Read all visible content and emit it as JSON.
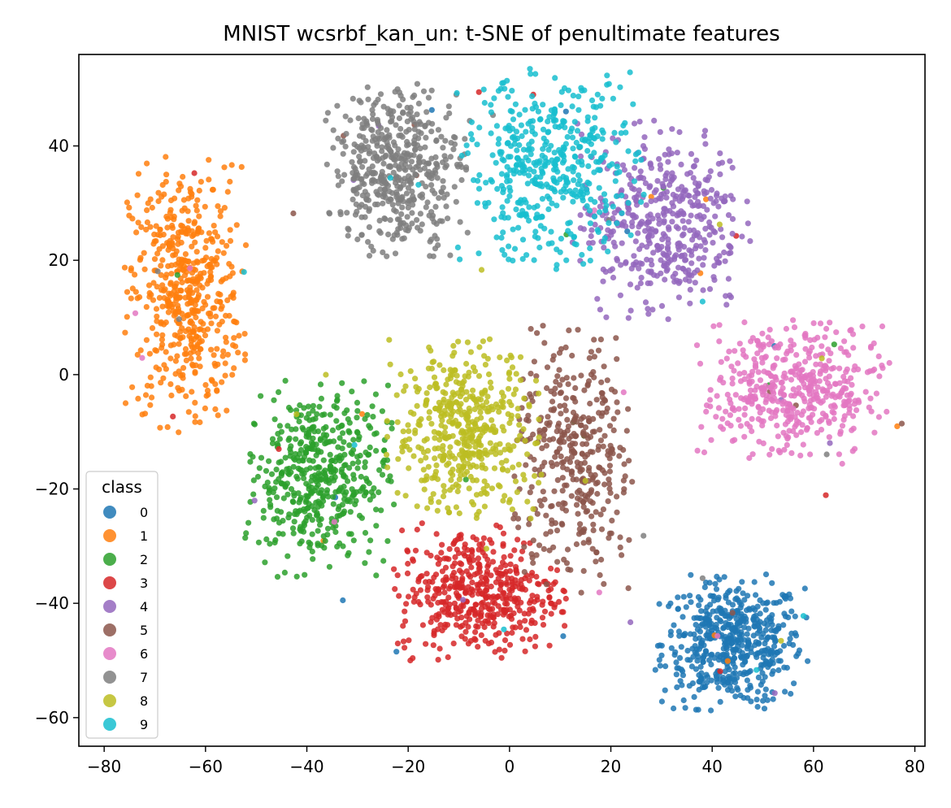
{
  "chart_data": {
    "type": "scatter",
    "title": "MNIST wcsrbf_kan_un: t-SNE of penultimate features",
    "xlabel": "",
    "ylabel": "",
    "xlim": [
      -85,
      82
    ],
    "ylim": [
      -65,
      56
    ],
    "x_ticks": [
      -80,
      -60,
      -40,
      -20,
      0,
      20,
      40,
      60,
      80
    ],
    "x_tick_labels": [
      "−80",
      "−60",
      "−40",
      "−20",
      "0",
      "20",
      "40",
      "60",
      "80"
    ],
    "y_ticks": [
      -60,
      -40,
      -20,
      0,
      20,
      40
    ],
    "y_tick_labels": [
      "−60",
      "−40",
      "−20",
      "0",
      "20",
      "40"
    ],
    "grid": false,
    "legend": {
      "title": "class",
      "placement": "lower-left"
    },
    "series": [
      {
        "name": "0",
        "color": "#1f77b4",
        "center": [
          44,
          -47
        ],
        "spread": [
          7,
          5.5
        ],
        "count": 520
      },
      {
        "name": "1",
        "color": "#ff7f0e",
        "center": [
          -64,
          14
        ],
        "spread": [
          5.5,
          11
        ],
        "count": 520
      },
      {
        "name": "2",
        "color": "#2ca02c",
        "center": [
          -38,
          -18
        ],
        "spread": [
          7,
          8
        ],
        "count": 480
      },
      {
        "name": "3",
        "color": "#d62728",
        "center": [
          -6,
          -38
        ],
        "spread": [
          8,
          5.5
        ],
        "count": 460
      },
      {
        "name": "4",
        "color": "#9467bd",
        "center": [
          30,
          27
        ],
        "spread": [
          8,
          8
        ],
        "count": 450
      },
      {
        "name": "5",
        "color": "#8c564b",
        "center": [
          13,
          -15
        ],
        "spread": [
          6,
          11
        ],
        "count": 380
      },
      {
        "name": "6",
        "color": "#e377c2",
        "center": [
          56,
          -3
        ],
        "spread": [
          9,
          6
        ],
        "count": 460
      },
      {
        "name": "7",
        "color": "#7f7f7f",
        "center": [
          -22,
          36
        ],
        "spread": [
          6.5,
          7
        ],
        "count": 480
      },
      {
        "name": "8",
        "color": "#bcbd22",
        "center": [
          -9,
          -10
        ],
        "spread": [
          7,
          7.5
        ],
        "count": 470
      },
      {
        "name": "9",
        "color": "#17becf",
        "center": [
          8,
          36
        ],
        "spread": [
          8.5,
          8
        ],
        "count": 450
      }
    ]
  }
}
